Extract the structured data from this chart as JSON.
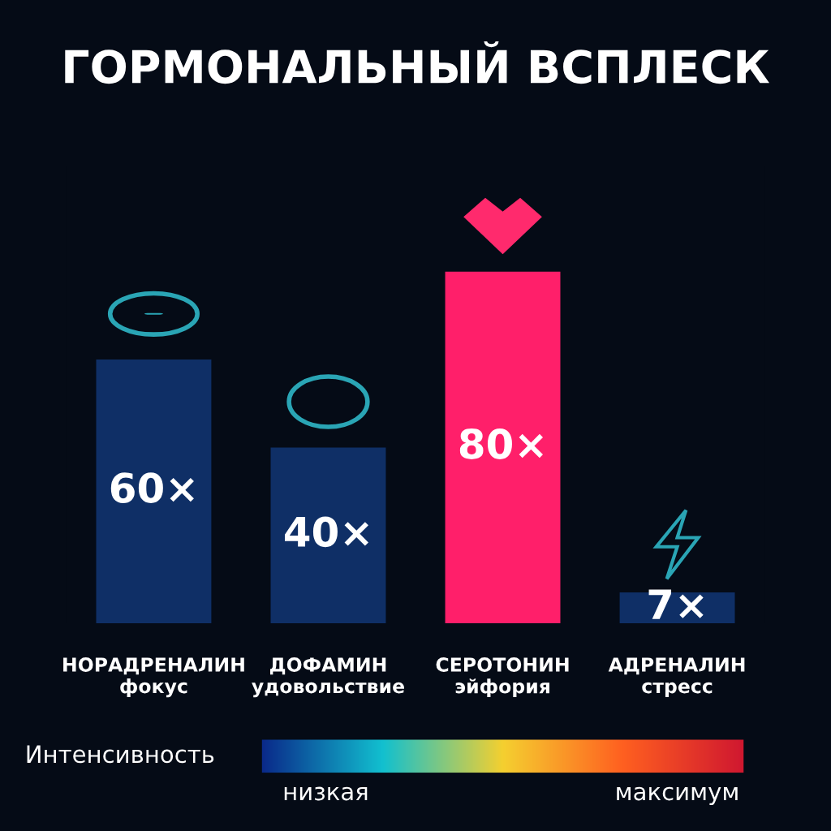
{
  "chart_data": {
    "type": "bar",
    "title": "ГОРМОНАЛЬНЫЙ ВСПЛЕСК",
    "categories": [
      "НОРАДРЕНАЛИН\nфокус",
      "ДОФАМИН\nудовольствие",
      "СЕРОТОНИН\nэйфория",
      "АДРЕНАЛИН\nстресс"
    ],
    "values": [
      60,
      40,
      80,
      7
    ],
    "colors": [
      "#0f2f66",
      "#0f2f66",
      "#ff1f6a",
      "#0f2f66"
    ],
    "value_labels": [
      "60×",
      "40×",
      "80×",
      "7×"
    ],
    "annotations": [
      "Интенсивность",
      "низкая",
      "максимум"
    ],
    "grid": false,
    "legend": false
  }
}
